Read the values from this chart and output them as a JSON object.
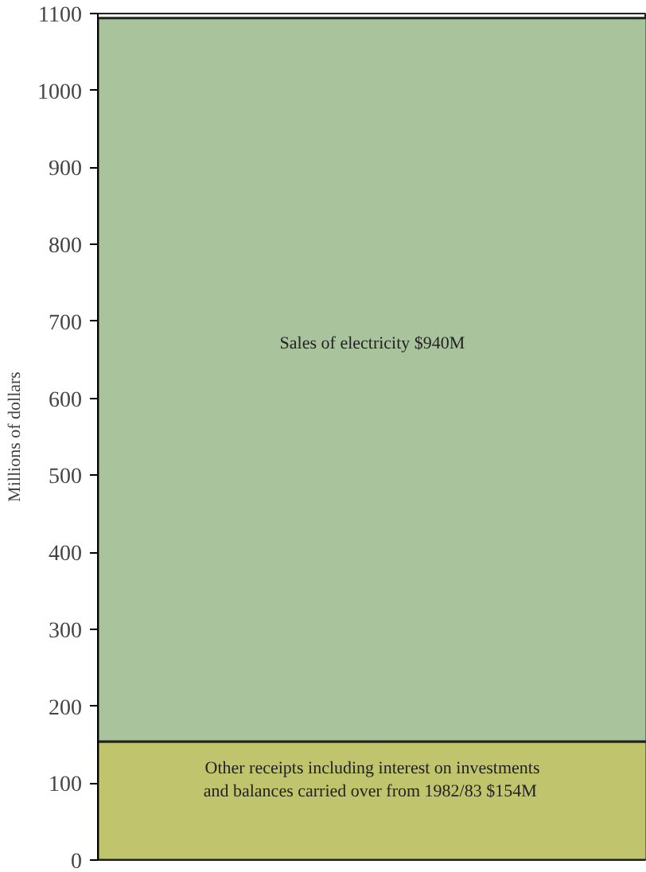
{
  "chart_data": {
    "type": "bar",
    "stacked": true,
    "ylabel": "Millions of dollars",
    "categories": [
      null
    ],
    "series": [
      {
        "color": "#c0c46c",
        "values": [
          154
        ]
      },
      {
        "color": "#a9c49c",
        "values": [
          940
        ]
      }
    ],
    "ylim": [
      0,
      1100
    ],
    "yticks": [
      0,
      100,
      200,
      300,
      400,
      500,
      600,
      700,
      800,
      900,
      1000,
      1100
    ],
    "grid": false,
    "annotations": [
      "Other receipts including interest on investments\nand balances carried over from 1982/83  $154M",
      "Sales of electricity $940M"
    ]
  }
}
